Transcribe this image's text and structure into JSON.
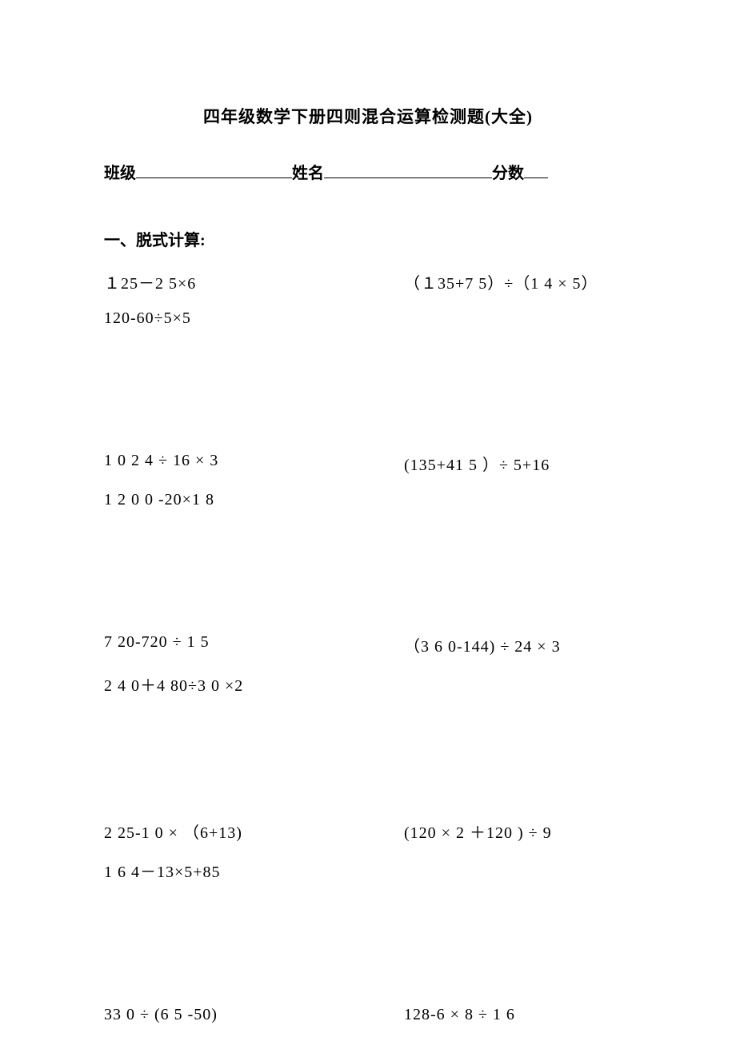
{
  "title": "四年级数学下册四则混合运算检测题(大全)",
  "header": {
    "class_label": "班级",
    "name_label": "姓名",
    "score_label": "分数"
  },
  "section1": {
    "title": "一、脱式计算:"
  },
  "groups": [
    {
      "row1_left": "１25－2 5×6",
      "row1_right": "（１35+7 5）÷（1 4 × 5）",
      "row2": "120-60÷5×5"
    },
    {
      "row1_left": "1 0 2 4 ÷ 16 × 3",
      "row1_right": "(135+41 5 ）÷ 5+16",
      "row2": "1 2 0 0 -20×1 8"
    },
    {
      "row1_left": "7 20-720 ÷ 1 5",
      "row1_right": "（3 6 0-144) ÷ 24 × 3",
      "row2": "2 4 0＋4 80÷3 0 ×2"
    },
    {
      "row1_left": "2 25-1 0 × （6+13)",
      "row1_right": "(120 × 2 ＋120 )  ÷ 9",
      "row2": "1 6 4－13×5+85"
    },
    {
      "row1_left": "33 0 ÷ (6 5 -50)",
      "row1_right": "128-6 × 8 ÷ 1 6",
      "row2": ""
    }
  ]
}
